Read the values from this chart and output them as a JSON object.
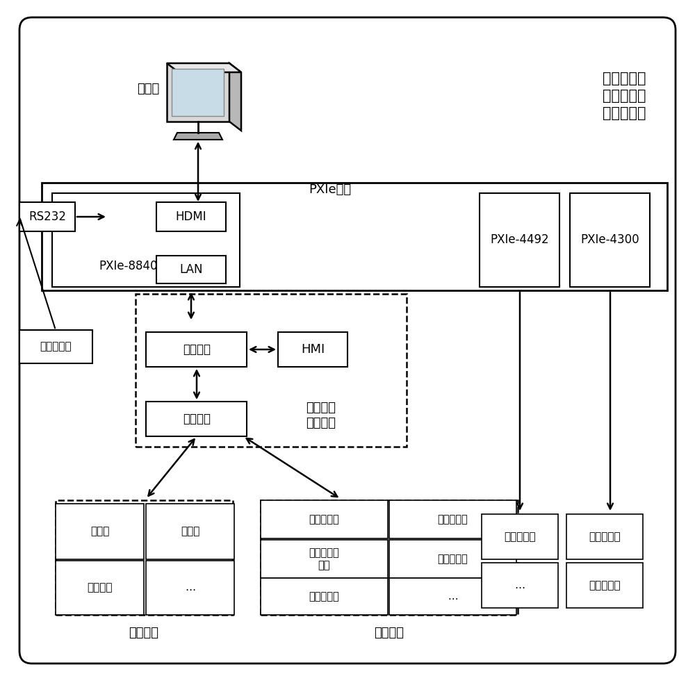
{
  "bg_color": "#ffffff",
  "title_text": "故障诊断及\n健康预报分\n析预测系统",
  "monitor_label": "显示器",
  "pxie_box_label": "PXIe机箱",
  "hdmi_label": "HDMI",
  "pxie8840_label": "PXIe-8840",
  "rs232_label": "RS232",
  "lan_label": "LAN",
  "pxie4492_label": "PXIe-4492",
  "pxie4300_label": "PXIe-4300",
  "ctrl_main_label": "控制主站",
  "hmi_label": "HMI",
  "ctrl_slave_label": "控制从站",
  "ctrl_system_label": "减摇鳍主\n控制系统",
  "gyro_label": "三轴陀螺仪",
  "actuator_label": "执行机构",
  "hydraulic_label": "液压机组",
  "actuator_cells": [
    {
      "col": 0,
      "row": 1,
      "text": "比例阀"
    },
    {
      "col": 1,
      "row": 1,
      "text": "换向阀"
    },
    {
      "col": 0,
      "row": 0,
      "text": "鳍角反馈"
    },
    {
      "col": 1,
      "row": 0,
      "text": "…"
    }
  ],
  "hydraulic_cells": [
    {
      "col": 0,
      "row": 2,
      "text": "流量传感器"
    },
    {
      "col": 1,
      "row": 2,
      "text": "温度传感器"
    },
    {
      "col": 0,
      "row": 1,
      "text": "油液水分传\n感器"
    },
    {
      "col": 1,
      "row": 1,
      "text": "压力传感器"
    },
    {
      "col": 0,
      "row": 0,
      "text": "液位传感器"
    },
    {
      "col": 1,
      "row": 0,
      "text": "…"
    }
  ]
}
